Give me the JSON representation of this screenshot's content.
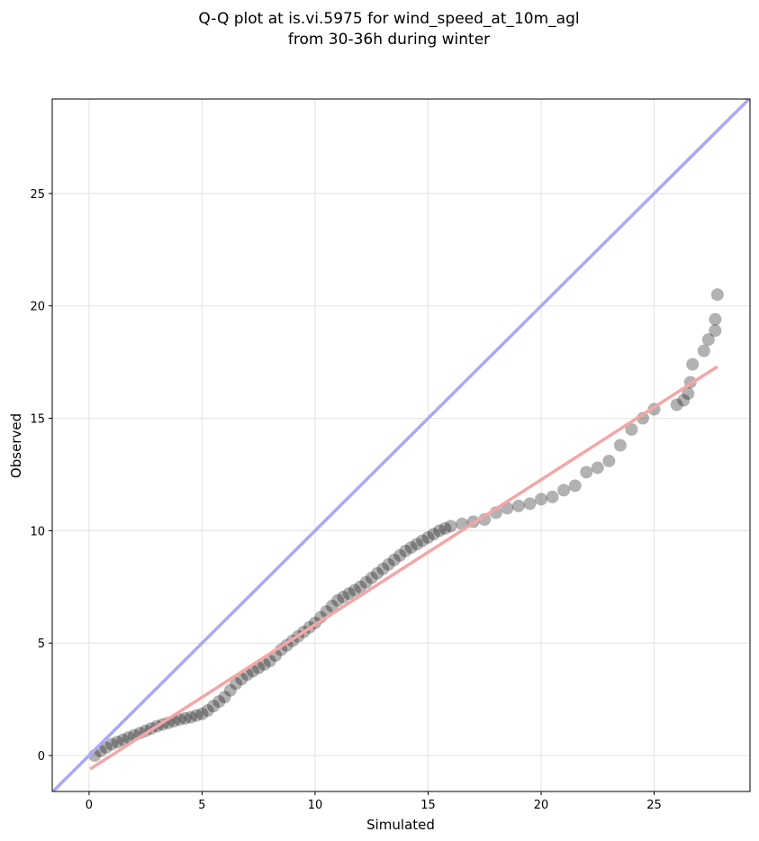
{
  "chart_data": {
    "type": "scatter",
    "title": "Q-Q plot at is.vi.5975 for wind_speed_at_10m_agl",
    "subtitle": "from 30-36h during winter",
    "xlabel": "Simulated",
    "ylabel": "Observed",
    "xlim": [
      -1.63,
      29.24
    ],
    "ylim": [
      -1.6,
      29.2
    ],
    "xticks": [
      0,
      5,
      10,
      15,
      20,
      25
    ],
    "yticks": [
      0,
      5,
      10,
      15,
      20,
      25
    ],
    "grid": true,
    "color": "#000000",
    "point_alpha": 0.3,
    "x": [
      0.25,
      0.5,
      0.75,
      1,
      1.25,
      1.5,
      1.75,
      2,
      2.25,
      2.5,
      2.75,
      3,
      3.25,
      3.5,
      3.75,
      4,
      4.25,
      4.5,
      4.75,
      5,
      5.25,
      5.5,
      5.75,
      6,
      6.25,
      6.5,
      6.75,
      7,
      7.25,
      7.5,
      7.75,
      8,
      8.25,
      8.5,
      8.75,
      9,
      9.25,
      9.5,
      9.75,
      10,
      10.25,
      10.5,
      10.75,
      11,
      11.25,
      11.5,
      11.75,
      12,
      12.25,
      12.5,
      12.75,
      13,
      13.25,
      13.5,
      13.75,
      14,
      14.25,
      14.5,
      14.75,
      15,
      15.25,
      15.5,
      15.75,
      16,
      16.5,
      17,
      17.5,
      18,
      18.5,
      19,
      19.5,
      20,
      20.5,
      21,
      21.5,
      22,
      22.5,
      23,
      23.5,
      24,
      24.5,
      25,
      26,
      26.3,
      26.5,
      26.6,
      26.7,
      27.2,
      27.4,
      27.7,
      27.7,
      27.8
    ],
    "values": [
      0.0,
      0.2,
      0.35,
      0.5,
      0.6,
      0.7,
      0.8,
      0.9,
      1.0,
      1.1,
      1.2,
      1.3,
      1.38,
      1.45,
      1.53,
      1.6,
      1.65,
      1.7,
      1.78,
      1.85,
      2.0,
      2.2,
      2.4,
      2.6,
      2.9,
      3.2,
      3.4,
      3.6,
      3.75,
      3.9,
      4.05,
      4.2,
      4.45,
      4.7,
      4.9,
      5.1,
      5.3,
      5.5,
      5.7,
      5.9,
      6.15,
      6.4,
      6.65,
      6.9,
      7.05,
      7.2,
      7.35,
      7.5,
      7.7,
      7.9,
      8.1,
      8.3,
      8.5,
      8.7,
      8.9,
      9.1,
      9.25,
      9.4,
      9.55,
      9.7,
      9.85,
      10.0,
      10.1,
      10.2,
      10.3,
      10.4,
      10.5,
      10.8,
      11.0,
      11.1,
      11.2,
      11.4,
      11.5,
      11.8,
      12.0,
      12.6,
      12.8,
      13.1,
      13.8,
      14.5,
      15.0,
      15.4,
      15.6,
      15.8,
      16.1,
      16.6,
      17.4,
      18.0,
      18.5,
      18.9,
      19.4,
      20.5
    ],
    "reference_line": {
      "color": "#a9a9f5",
      "x": [
        -1.63,
        29.2
      ],
      "y": [
        -1.63,
        29.2
      ]
    },
    "fit_line": {
      "color": "#f4a6a6",
      "x": [
        0.05,
        27.8
      ],
      "y": [
        -0.6,
        17.3
      ]
    }
  }
}
